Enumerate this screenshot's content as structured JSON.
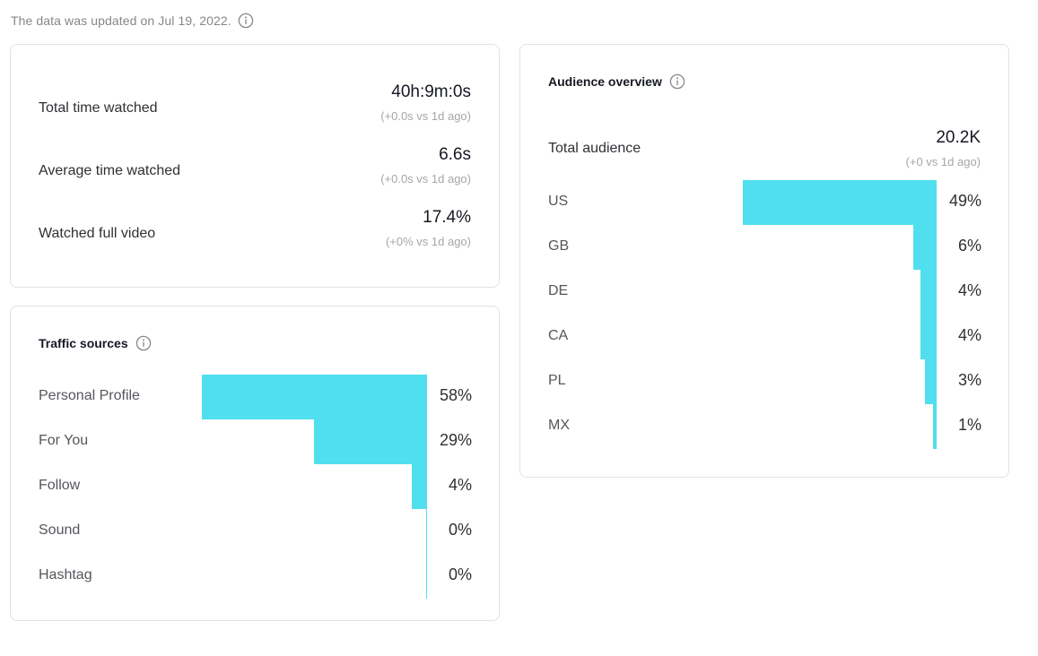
{
  "header": {
    "update_text": "The data was updated on Jul 19, 2022.",
    "info_icon": "info-circle-icon"
  },
  "metrics": [
    {
      "label": "Total time watched",
      "value": "40h:9m:0s",
      "compare": "(+0.0s vs 1d ago)"
    },
    {
      "label": "Average time watched",
      "value": "6.6s",
      "compare": "(+0.0s vs 1d ago)"
    },
    {
      "label": "Watched full video",
      "value": "17.4%",
      "compare": "(+0% vs 1d ago)"
    }
  ],
  "traffic_sources": {
    "title": "Traffic sources",
    "info_icon": "info-circle-icon",
    "bar_color": "#4fdfee",
    "items": [
      {
        "label": "Personal Profile",
        "percent_text": "58%",
        "value": 58
      },
      {
        "label": "For You",
        "percent_text": "29%",
        "value": 29
      },
      {
        "label": "Follow",
        "percent_text": "4%",
        "value": 4
      },
      {
        "label": "Sound",
        "percent_text": "0%",
        "value": 0
      },
      {
        "label": "Hashtag",
        "percent_text": "0%",
        "value": 0
      }
    ]
  },
  "audience_overview": {
    "title": "Audience overview",
    "info_icon": "info-circle-icon",
    "total_label": "Total audience",
    "total_value": "20.2K",
    "total_compare": "(+0 vs 1d ago)",
    "bar_color": "#4fdfee",
    "items": [
      {
        "label": "US",
        "percent_text": "49%",
        "value": 49
      },
      {
        "label": "GB",
        "percent_text": "6%",
        "value": 6
      },
      {
        "label": "DE",
        "percent_text": "4%",
        "value": 4
      },
      {
        "label": "CA",
        "percent_text": "4%",
        "value": 4
      },
      {
        "label": "PL",
        "percent_text": "3%",
        "value": 3
      },
      {
        "label": "MX",
        "percent_text": "1%",
        "value": 1
      }
    ]
  }
}
